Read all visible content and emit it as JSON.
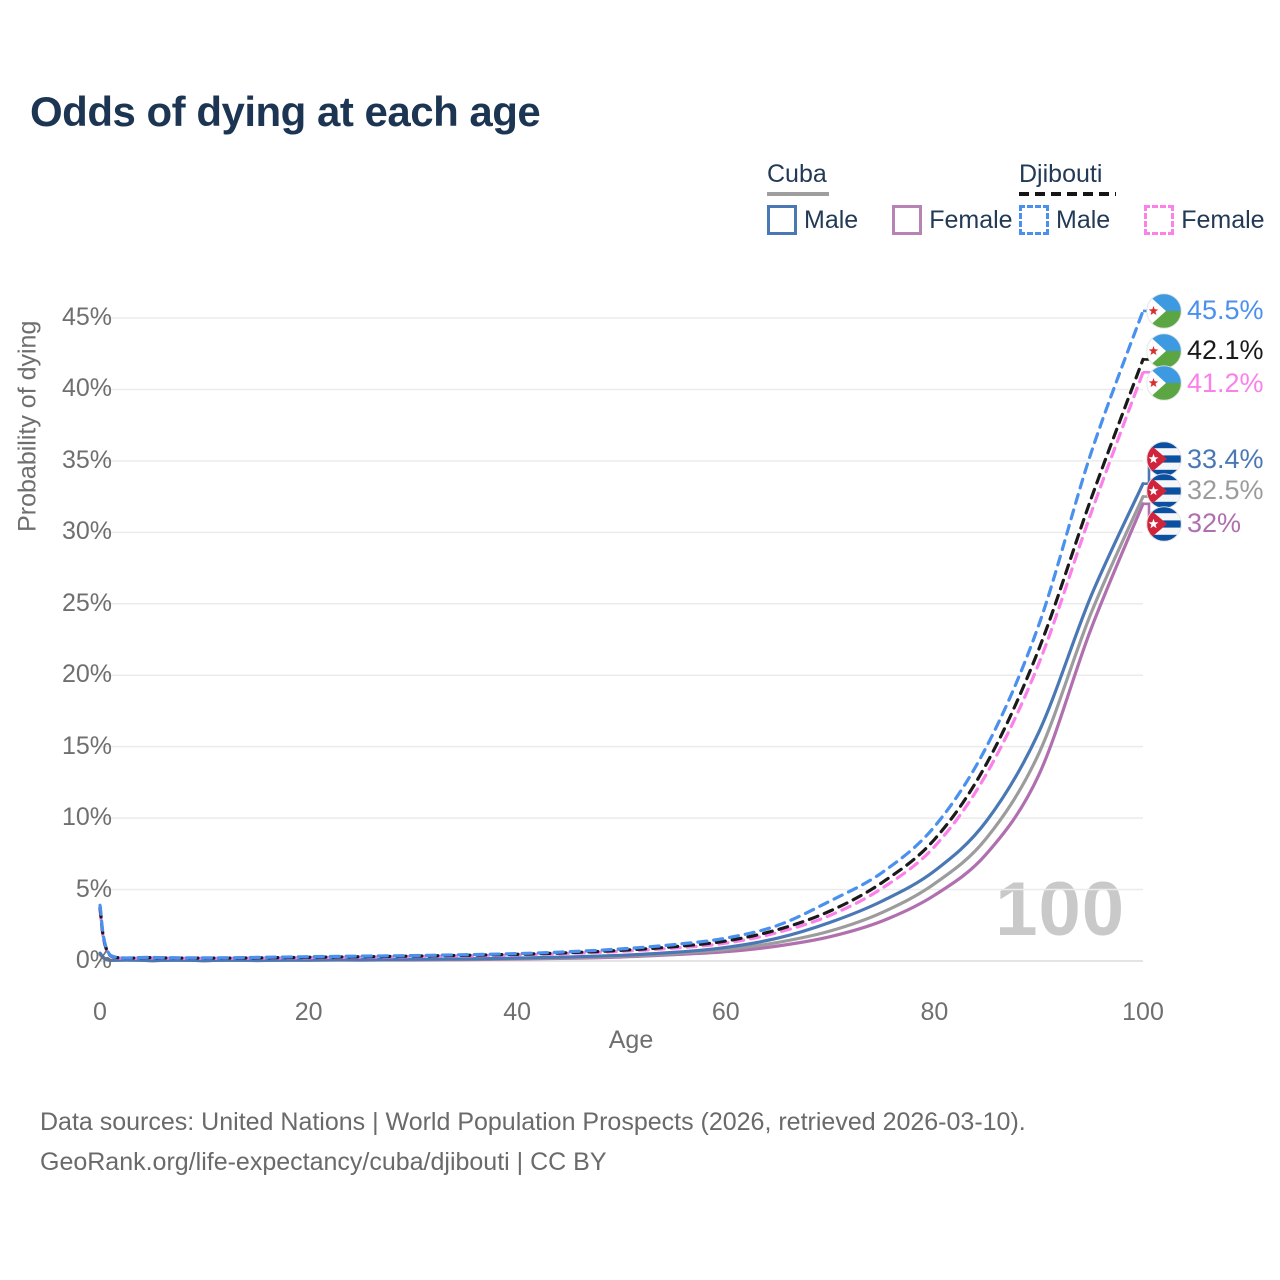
{
  "title": "Odds of dying at each age",
  "watermark": "100",
  "legend": {
    "groups": [
      {
        "name": "Cuba",
        "line_style": "solid",
        "line_color": "#9e9e9e",
        "items": [
          {
            "label": "Male",
            "color": "#4a78b5"
          },
          {
            "label": "Female",
            "color": "#b783b5"
          }
        ]
      },
      {
        "name": "Djibouti",
        "line_style": "dashed",
        "line_color": "#151515",
        "items": [
          {
            "label": "Male",
            "color": "#4a90ee"
          },
          {
            "label": "Female",
            "color": "#fb80ea"
          }
        ]
      }
    ]
  },
  "footer": {
    "line1": "Data sources: United Nations | World Population Prospects (2026, retrieved 2026-03-10).",
    "line2": "GeoRank.org/life-expectancy/cuba/djibouti | CC BY"
  },
  "chart_data": {
    "type": "line",
    "title": "Odds of dying at each age",
    "xlabel": "Age",
    "ylabel": "Probability of dying",
    "xlim": [
      0,
      100
    ],
    "ylim": [
      0,
      46
    ],
    "grid": "horizontal",
    "legend_position": "top-right",
    "x_ticks": [
      {
        "value": 0,
        "label": "0"
      },
      {
        "value": 20,
        "label": "20"
      },
      {
        "value": 40,
        "label": "40"
      },
      {
        "value": 60,
        "label": "60"
      },
      {
        "value": 80,
        "label": "80"
      },
      {
        "value": 100,
        "label": "100"
      }
    ],
    "y_ticks": [
      {
        "value": 0,
        "label": "0%"
      },
      {
        "value": 5,
        "label": "5%"
      },
      {
        "value": 10,
        "label": "10%"
      },
      {
        "value": 15,
        "label": "15%"
      },
      {
        "value": 20,
        "label": "20%"
      },
      {
        "value": 25,
        "label": "25%"
      },
      {
        "value": 30,
        "label": "30%"
      },
      {
        "value": 35,
        "label": "35%"
      },
      {
        "value": 40,
        "label": "40%"
      },
      {
        "value": 45,
        "label": "45%"
      }
    ],
    "ages": [
      0,
      1,
      5,
      10,
      15,
      20,
      25,
      30,
      35,
      40,
      45,
      50,
      55,
      60,
      65,
      70,
      75,
      80,
      85,
      90,
      95,
      100
    ],
    "series": [
      {
        "name": "Djibouti Male",
        "country": "Djibouti",
        "sex": "Male",
        "color": "#4a90ee",
        "dashed": true,
        "flag": "djibouti",
        "end_value": 45.5,
        "end_label": "45.5%",
        "label_pct": 45.5,
        "values": [
          3.9,
          0.4,
          0.25,
          0.22,
          0.25,
          0.3,
          0.34,
          0.38,
          0.44,
          0.52,
          0.65,
          0.85,
          1.15,
          1.6,
          2.5,
          4.2,
          6.2,
          9.4,
          15.0,
          23.5,
          35.5,
          45.5
        ]
      },
      {
        "name": "Djibouti",
        "country": "Djibouti",
        "sex": "Both sexes",
        "color": "#1a1a1a",
        "dashed": true,
        "flag": "djibouti",
        "end_value": 42.1,
        "end_label": "42.1%",
        "label_pct": 42.7,
        "values": [
          3.7,
          0.38,
          0.23,
          0.2,
          0.22,
          0.26,
          0.3,
          0.34,
          0.4,
          0.47,
          0.58,
          0.75,
          1.0,
          1.4,
          2.2,
          3.5,
          5.5,
          8.5,
          13.8,
          21.8,
          32.3,
          42.1
        ]
      },
      {
        "name": "Djibouti Female",
        "country": "Djibouti",
        "sex": "Female",
        "color": "#fb80ea",
        "dashed": true,
        "flag": "djibouti",
        "end_value": 41.2,
        "end_label": "41.2%",
        "label_pct": 40.45,
        "values": [
          3.5,
          0.36,
          0.22,
          0.19,
          0.2,
          0.23,
          0.27,
          0.31,
          0.36,
          0.43,
          0.53,
          0.68,
          0.9,
          1.25,
          2.0,
          3.2,
          5.1,
          8.0,
          13.1,
          20.8,
          31.3,
          41.2
        ]
      },
      {
        "name": "Cuba Male",
        "country": "Cuba",
        "sex": "Male",
        "color": "#4a78b5",
        "dashed": false,
        "flag": "cuba",
        "end_value": 33.4,
        "end_label": "33.4%",
        "label_pct": 35.1,
        "values": [
          0.55,
          0.05,
          0.03,
          0.03,
          0.05,
          0.08,
          0.1,
          0.12,
          0.15,
          0.2,
          0.28,
          0.4,
          0.6,
          0.95,
          1.6,
          2.7,
          4.2,
          6.3,
          9.8,
          16.0,
          25.5,
          33.4
        ]
      },
      {
        "name": "Cuba",
        "country": "Cuba",
        "sex": "Both sexes",
        "color": "#9c9c9c",
        "dashed": false,
        "flag": "cuba",
        "end_value": 32.5,
        "end_label": "32.5%",
        "label_pct": 32.9,
        "values": [
          0.5,
          0.045,
          0.03,
          0.03,
          0.04,
          0.06,
          0.08,
          0.1,
          0.13,
          0.17,
          0.24,
          0.34,
          0.52,
          0.8,
          1.3,
          2.1,
          3.4,
          5.4,
          8.6,
          14.5,
          24.3,
          32.5
        ]
      },
      {
        "name": "Cuba Female",
        "country": "Cuba",
        "sex": "Female",
        "color": "#b06fae",
        "dashed": false,
        "flag": "cuba",
        "end_value": 32.0,
        "end_label": "32%",
        "label_pct": 30.6,
        "values": [
          0.45,
          0.04,
          0.02,
          0.02,
          0.03,
          0.04,
          0.05,
          0.07,
          0.1,
          0.14,
          0.19,
          0.28,
          0.44,
          0.65,
          1.05,
          1.7,
          2.8,
          4.6,
          7.5,
          13.0,
          23.2,
          32.0
        ]
      }
    ]
  }
}
